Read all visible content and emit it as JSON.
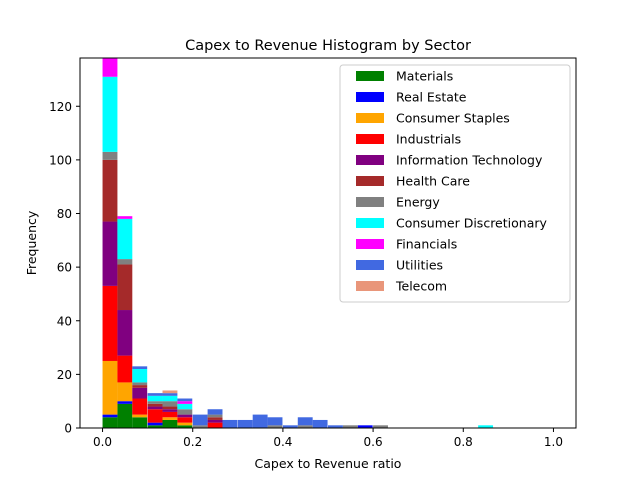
{
  "chart_data": {
    "type": "bar",
    "stacked": true,
    "title": "Capex to Revenue Histogram by Sector",
    "xlabel": "Capex to Revenue ratio",
    "ylabel": "Frequency",
    "xlim": [
      -0.05,
      1.05
    ],
    "ylim": [
      0,
      138
    ],
    "xticks": [
      "0.0",
      "0.2",
      "0.4",
      "0.6",
      "0.8",
      "1.0"
    ],
    "yticks": [
      "0",
      "20",
      "40",
      "60",
      "80",
      "100",
      "120"
    ],
    "grid": false,
    "legend_position": "top-right",
    "bin_width": 0.033,
    "bin_starts": [
      0.0,
      0.033,
      0.066,
      0.1,
      0.133,
      0.166,
      0.2,
      0.233,
      0.266,
      0.3,
      0.333,
      0.366,
      0.4,
      0.433,
      0.466,
      0.5,
      0.533,
      0.566,
      0.6,
      0.633,
      0.833
    ],
    "series": [
      {
        "name": "Materials",
        "color": "#008000",
        "values": [
          4,
          9,
          4,
          1,
          3,
          1,
          0,
          0,
          0,
          0,
          0,
          0,
          0,
          0,
          0,
          0,
          0,
          0,
          0,
          0,
          0
        ]
      },
      {
        "name": "Real Estate",
        "color": "#0000ff",
        "values": [
          1,
          1,
          0,
          1,
          0,
          0,
          0,
          0,
          0,
          0,
          0,
          0,
          0,
          0,
          0,
          0,
          0,
          1,
          0,
          0,
          0
        ]
      },
      {
        "name": "Consumer Staples",
        "color": "#ffa500",
        "values": [
          20,
          7,
          1,
          0,
          1,
          1,
          0,
          0,
          0,
          0,
          0,
          0,
          0,
          0,
          0,
          0,
          0,
          0,
          0,
          0,
          0
        ]
      },
      {
        "name": "Industrials",
        "color": "#ff0000",
        "values": [
          28,
          10,
          6,
          5,
          2,
          2,
          0,
          2,
          0,
          0,
          0,
          0,
          0,
          0,
          0,
          0,
          0,
          0,
          0,
          0,
          0
        ]
      },
      {
        "name": "Information Technology",
        "color": "#800080",
        "values": [
          24,
          17,
          4,
          1,
          1,
          1,
          0,
          1,
          0,
          0,
          0,
          0,
          0,
          0,
          0,
          0,
          0,
          0,
          0,
          0,
          0
        ]
      },
      {
        "name": "Health Care",
        "color": "#a52a2a",
        "values": [
          23,
          17,
          1,
          1,
          1,
          0,
          0,
          1,
          0,
          0,
          0,
          0,
          0,
          0,
          0,
          0,
          0,
          0,
          0,
          0,
          0
        ]
      },
      {
        "name": "Energy",
        "color": "#808080",
        "values": [
          3,
          2,
          1,
          1,
          2,
          2,
          1,
          1,
          0,
          0,
          0,
          1,
          0,
          1,
          0,
          0,
          1,
          0,
          1,
          0,
          0
        ]
      },
      {
        "name": "Consumer Discretionary",
        "color": "#00ffff",
        "values": [
          28,
          15,
          5,
          2,
          2,
          2,
          0,
          0,
          0,
          0,
          0,
          0,
          0,
          0,
          0,
          0,
          0,
          0,
          0,
          0,
          1
        ]
      },
      {
        "name": "Financials",
        "color": "#ff00ff",
        "values": [
          7,
          1,
          0,
          0,
          0,
          1,
          0,
          0,
          0,
          0,
          0,
          0,
          0,
          0,
          0,
          0,
          0,
          0,
          0,
          0,
          0
        ]
      },
      {
        "name": "Utilities",
        "color": "#4169e1",
        "values": [
          0,
          0,
          1,
          1,
          1,
          1,
          4,
          2,
          3,
          3,
          5,
          3,
          1,
          3,
          3,
          1,
          0,
          0,
          0,
          0,
          0
        ]
      },
      {
        "name": "Telecom",
        "color": "#e9967a",
        "values": [
          0,
          0,
          0,
          0,
          1,
          0,
          0,
          0,
          0,
          0,
          0,
          0,
          0,
          0,
          0,
          0,
          0,
          0,
          0,
          0,
          0
        ]
      }
    ]
  }
}
